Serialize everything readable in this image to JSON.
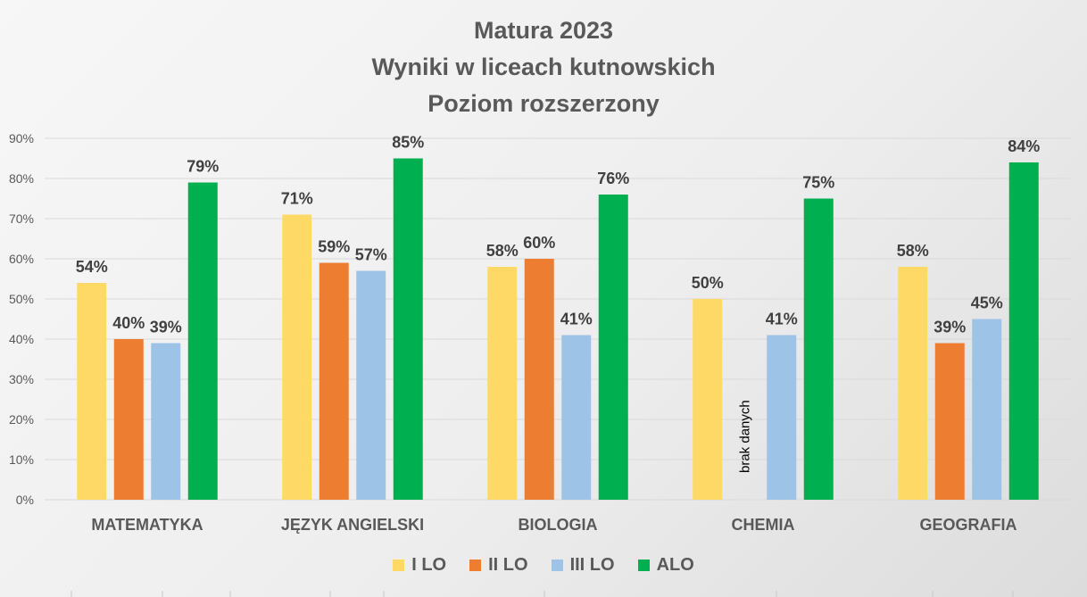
{
  "chart_data": {
    "type": "bar",
    "title": "Matura 2023",
    "subtitle_lines": [
      "Wyniki w liceach kutnowskich",
      "Poziom rozszerzony"
    ],
    "categories": [
      "MATEMATYKA",
      "JĘZYK ANGIELSKI",
      "BIOLOGIA",
      "CHEMIA",
      "GEOGRAFIA"
    ],
    "series": [
      {
        "name": "I LO",
        "color": "#FFD966",
        "values": [
          54,
          71,
          58,
          50,
          58
        ]
      },
      {
        "name": "II LO",
        "color": "#ED7D31",
        "values": [
          40,
          59,
          60,
          null,
          39
        ]
      },
      {
        "name": "III LO",
        "color": "#9DC3E6",
        "values": [
          39,
          57,
          41,
          41,
          45
        ]
      },
      {
        "name": "ALO",
        "color": "#00B050",
        "values": [
          79,
          85,
          76,
          75,
          84
        ]
      }
    ],
    "data_label_suffix": "%",
    "annotations": [
      {
        "category": "CHEMIA",
        "series": "II LO",
        "text": "brak danych"
      }
    ],
    "ylim": [
      0,
      90
    ],
    "yticks": [
      "0%",
      "10%",
      "20%",
      "30%",
      "40%",
      "50%",
      "60%",
      "70%",
      "80%",
      "90%"
    ],
    "grid": true,
    "legend_position": "bottom"
  }
}
